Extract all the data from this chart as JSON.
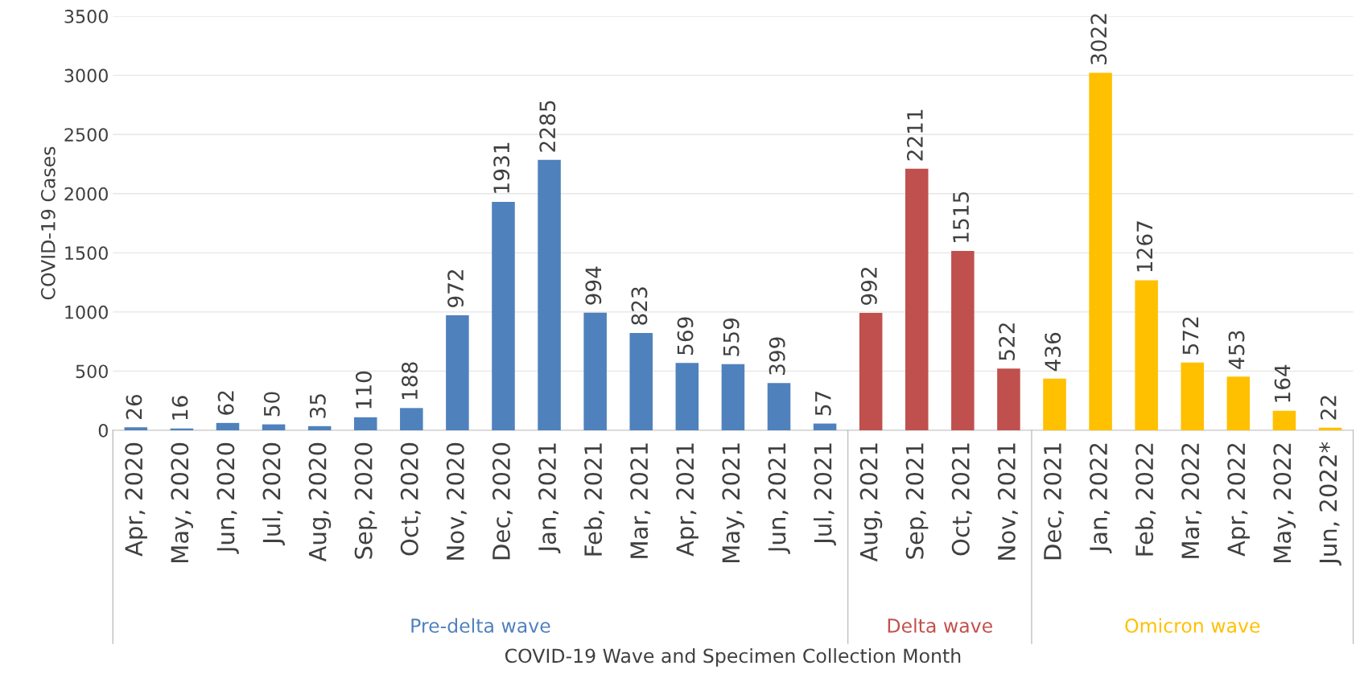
{
  "chart_data": {
    "type": "bar",
    "stacked": true,
    "categories": [
      "Apr, 2020",
      "May, 2020",
      "Jun, 2020",
      "Jul, 2020",
      "Aug, 2020",
      "Sep, 2020",
      "Oct, 2020",
      "Nov, 2020",
      "Dec, 2020",
      "Jan, 2021",
      "Feb, 2021",
      "Mar, 2021",
      "Apr, 2021",
      "May, 2021",
      "Jun, 2021",
      "Jul, 2021",
      "Aug, 2021",
      "Sep, 2021",
      "Oct, 2021",
      "Nov, 2021",
      "Dec, 2021",
      "Jan, 2022",
      "Feb, 2022",
      "Mar, 2022",
      "Apr, 2022",
      "May, 2022",
      "Jun, 2022*"
    ],
    "series": [
      {
        "name": "Pre-delta wave",
        "color": "#4f81bd",
        "values": [
          26,
          16,
          62,
          50,
          35,
          110,
          188,
          972,
          1931,
          2285,
          994,
          823,
          569,
          559,
          399,
          57,
          null,
          null,
          null,
          null,
          null,
          null,
          null,
          null,
          null,
          null,
          null
        ]
      },
      {
        "name": "Delta wave",
        "color": "#c0504d",
        "values": [
          null,
          null,
          null,
          null,
          null,
          null,
          null,
          null,
          null,
          null,
          null,
          null,
          null,
          null,
          null,
          null,
          992,
          2211,
          1515,
          522,
          null,
          null,
          null,
          null,
          null,
          null,
          null
        ]
      },
      {
        "name": "Omicron wave",
        "color": "#ffc000",
        "values": [
          null,
          null,
          null,
          null,
          null,
          null,
          null,
          null,
          null,
          null,
          null,
          null,
          null,
          null,
          null,
          null,
          null,
          null,
          null,
          null,
          436,
          3022,
          1267,
          572,
          453,
          164,
          22
        ]
      }
    ],
    "xlabel": "COVID-19 Wave and Specimen Collection Month",
    "ylabel": "COVID-19 Cases",
    "ylim": [
      0,
      3500
    ],
    "yticks": [
      0,
      500,
      1000,
      1500,
      2000,
      2500,
      3000,
      3500
    ],
    "grid": "y",
    "data_labels": true
  }
}
